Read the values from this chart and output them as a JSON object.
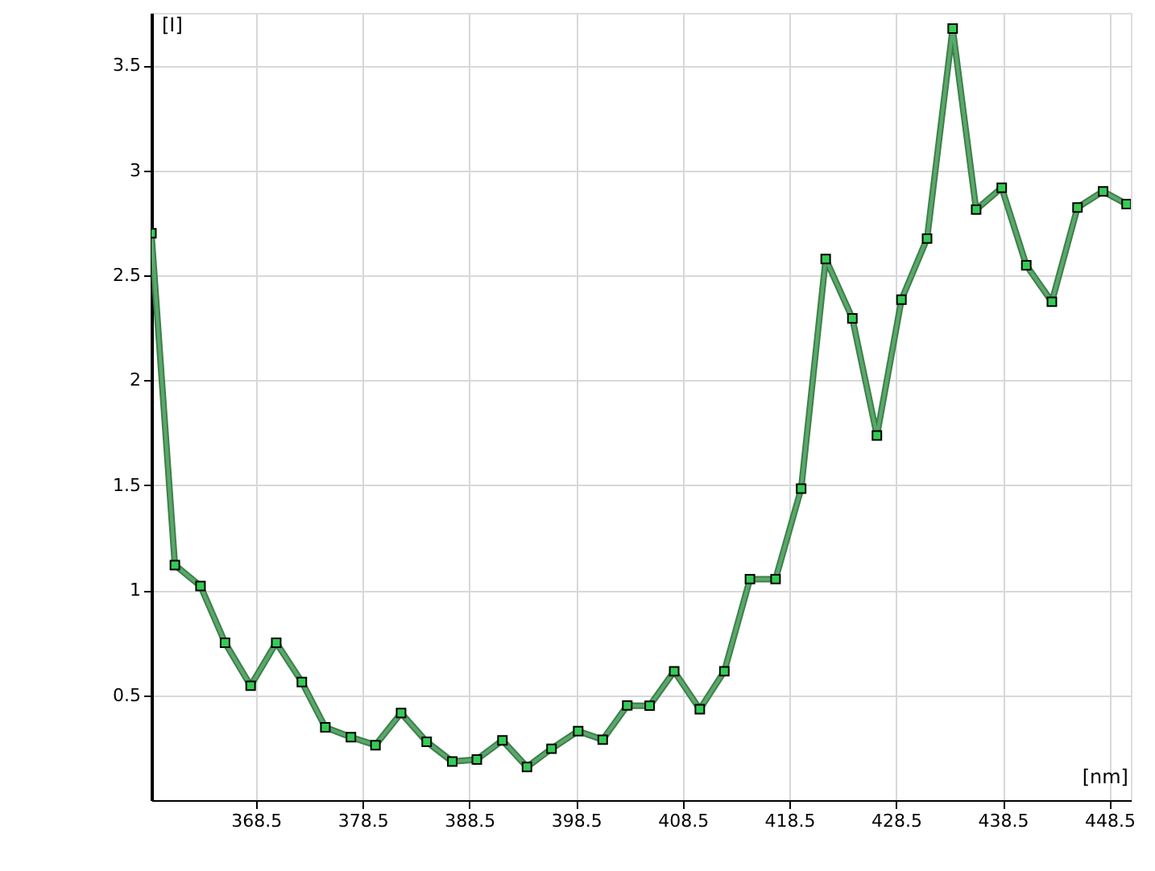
{
  "chart_data": {
    "type": "line",
    "xlabel": "[nm]",
    "ylabel": "[I]",
    "x": [
      358.7,
      360.9,
      363.3,
      365.6,
      368.0,
      370.4,
      372.8,
      375.0,
      377.4,
      379.7,
      382.1,
      384.5,
      386.9,
      389.2,
      391.6,
      393.9,
      396.2,
      398.7,
      401.0,
      403.3,
      405.4,
      407.7,
      410.1,
      412.4,
      414.8,
      417.2,
      419.6,
      421.9,
      424.4,
      426.7,
      429.0,
      431.4,
      433.8,
      436.0,
      438.4,
      440.7,
      443.1,
      445.5,
      447.9,
      450.1
    ],
    "series": [
      {
        "color": "#5aa86a",
        "values": [
          2.7,
          1.12,
          1.02,
          0.75,
          0.545,
          0.75,
          0.563,
          0.347,
          0.3,
          0.262,
          0.415,
          0.278,
          0.184,
          0.194,
          0.285,
          0.158,
          0.245,
          0.329,
          0.288,
          0.451,
          0.45,
          0.614,
          0.433,
          0.614,
          1.053,
          1.053,
          1.484,
          2.578,
          2.295,
          1.737,
          2.384,
          2.675,
          3.675,
          2.813,
          2.917,
          2.548,
          2.374,
          2.823,
          2.9,
          2.839
        ]
      }
    ],
    "xlim": [
      358.7,
      450.5
    ],
    "ylim": [
      0,
      3.75
    ],
    "xticks": [
      368.5,
      378.5,
      388.5,
      398.5,
      408.5,
      418.5,
      428.5,
      438.5,
      448.5
    ],
    "yticks": [
      0.5,
      1,
      1.5,
      2,
      2.5,
      3,
      3.5
    ],
    "grid": true,
    "marker": "square",
    "line_style": "solid"
  }
}
